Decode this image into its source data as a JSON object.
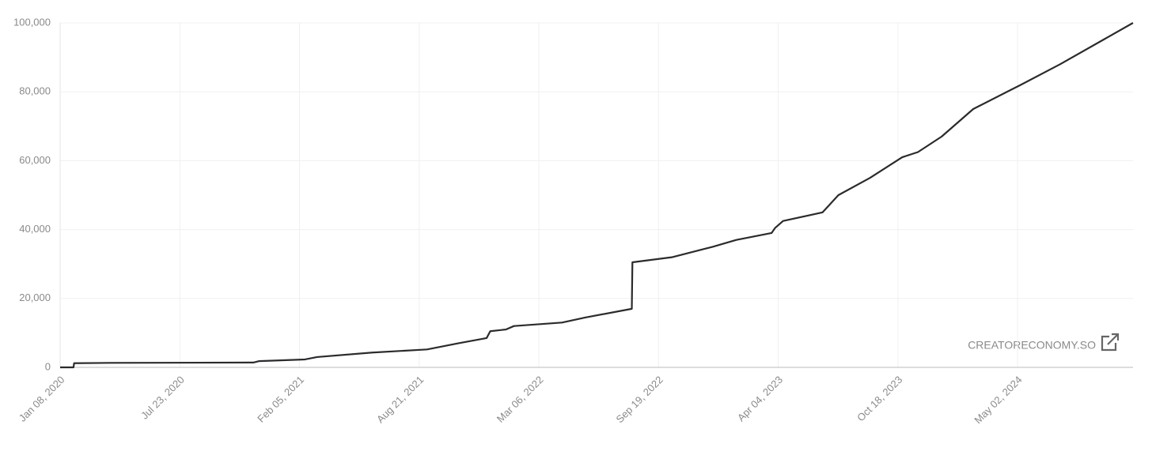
{
  "chart_data": {
    "type": "line",
    "watermark": "CREATORECONOMY.SO",
    "x": [
      "2020-01-08",
      "2020-01-30",
      "2020-01-31",
      "2020-03-31",
      "2020-11-21",
      "2020-11-30",
      "2021-02-14",
      "2021-03-06",
      "2021-06-05",
      "2021-09-03",
      "2021-10-25",
      "2021-12-10",
      "2021-12-16",
      "2022-01-11",
      "2022-01-24",
      "2022-04-13",
      "2022-05-22",
      "2022-08-06",
      "2022-08-07",
      "2022-10-12",
      "2022-12-17",
      "2023-01-25",
      "2023-03-24",
      "2023-03-30",
      "2023-04-12",
      "2023-06-16",
      "2023-07-12",
      "2023-09-02",
      "2023-10-25",
      "2023-11-20",
      "2023-12-29",
      "2024-02-19",
      "2024-05-07",
      "2024-07-11",
      "2024-11-08"
    ],
    "series": [
      {
        "color": "#2b2b2d",
        "values": [
          0,
          0,
          1200,
          1300,
          1400,
          1800,
          2300,
          3000,
          4300,
          5200,
          7000,
          8500,
          10500,
          11000,
          12000,
          13000,
          14500,
          17000,
          30500,
          32000,
          35000,
          37000,
          39000,
          40500,
          42500,
          45000,
          50000,
          55000,
          61000,
          62500,
          67000,
          75000,
          82000,
          88000,
          100000
        ]
      }
    ],
    "xlim": [
      "2020-01-08",
      "2024-11-08"
    ],
    "xticks": [
      {
        "value": "2020-01-08",
        "label": "Jan 08, 2020"
      },
      {
        "value": "2020-07-23",
        "label": "Jul 23, 2020"
      },
      {
        "value": "2021-02-05",
        "label": "Feb 05, 2021"
      },
      {
        "value": "2021-08-21",
        "label": "Aug 21, 2021"
      },
      {
        "value": "2022-03-06",
        "label": "Mar 06, 2022"
      },
      {
        "value": "2022-09-19",
        "label": "Sep 19, 2022"
      },
      {
        "value": "2023-04-04",
        "label": "Apr 04, 2023"
      },
      {
        "value": "2023-10-18",
        "label": "Oct 18, 2023"
      },
      {
        "value": "2024-05-02",
        "label": "May 02, 2024"
      }
    ],
    "ylim": [
      0,
      100000
    ],
    "yticks": [
      0,
      {
        "value": 20000,
        "label": "20,000"
      },
      {
        "value": 40000,
        "label": "40,000"
      },
      {
        "value": 60000,
        "label": "60,000"
      },
      {
        "value": 80000,
        "label": "80,000"
      },
      {
        "value": 100000,
        "label": "100,000"
      }
    ],
    "grid": true
  }
}
